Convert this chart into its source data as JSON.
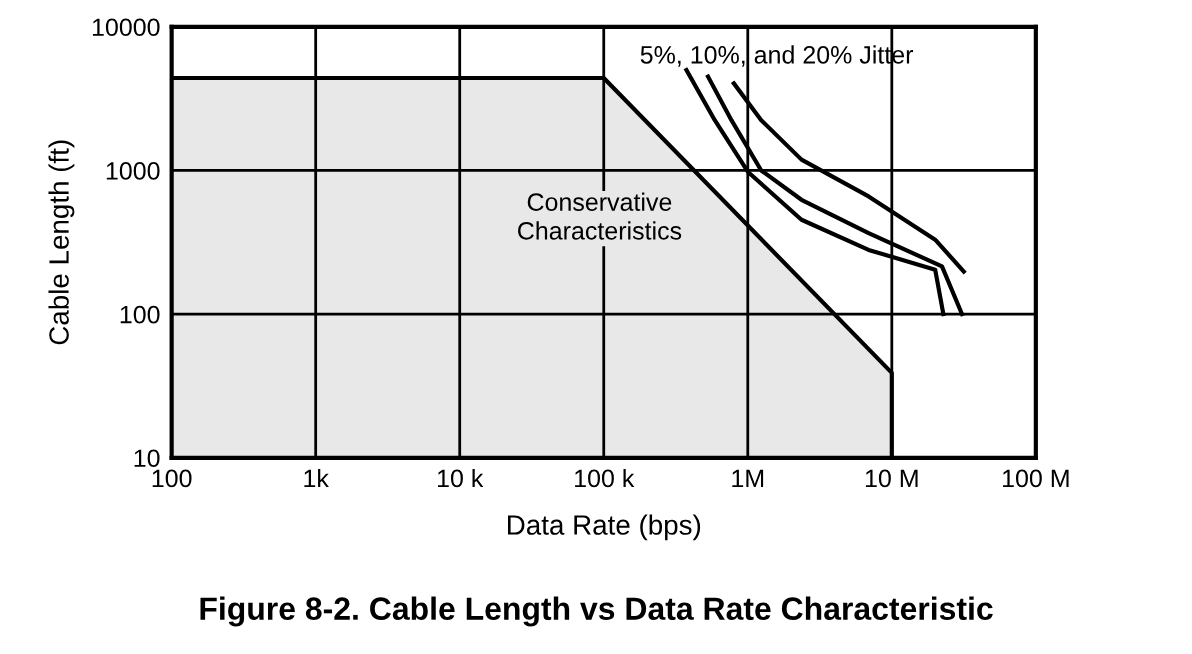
{
  "chart_data": {
    "type": "line",
    "title": "Figure 8-2. Cable Length vs Data Rate Characteristic",
    "xlabel": "Data Rate (bps)",
    "ylabel": "Cable Length (ft)",
    "log": "xy",
    "grid": true,
    "marker": "none",
    "line_style": "solid",
    "xlim": [
      100,
      100000000
    ],
    "ylim": [
      10,
      10000
    ],
    "xticks": [
      100,
      {
        "value": 1000,
        "label": "1k"
      },
      {
        "value": 10000,
        "label": "10 k"
      },
      {
        "value": 100000,
        "label": "100 k"
      },
      {
        "value": 1000000,
        "label": "1M"
      },
      {
        "value": 10000000,
        "label": "10 M"
      },
      {
        "value": 100000000,
        "label": "100 M"
      }
    ],
    "yticks": [
      10,
      100,
      1000,
      10000
    ],
    "series": [
      {
        "type": "area",
        "color": "#e8e8e8",
        "x": [
          100,
          100000,
          10000000,
          10000000
        ],
        "values": [
          4400,
          4400,
          39,
          10
        ]
      },
      {
        "color": "#000000",
        "x": [
          375000,
          590000,
          1000000,
          2360000,
          6900000,
          20000000,
          22800000
        ],
        "values": [
          5000,
          2240,
          980,
          454,
          280,
          204,
          100
        ]
      },
      {
        "color": "#000000",
        "x": [
          530000,
          770000,
          1240000,
          2360000,
          6900000,
          22300000,
          30700000
        ],
        "values": [
          4500,
          2240,
          1000,
          625,
          366,
          215,
          100
        ]
      },
      {
        "color": "#000000",
        "x": [
          800000,
          1240000,
          2360000,
          6900000,
          20000000,
          31600000
        ],
        "values": [
          4040,
          2240,
          1190,
          660,
          330,
          198
        ]
      }
    ],
    "annotations": [
      "5%, 10%, and 20% Jitter",
      "Conservative\nCharacteristics"
    ]
  }
}
